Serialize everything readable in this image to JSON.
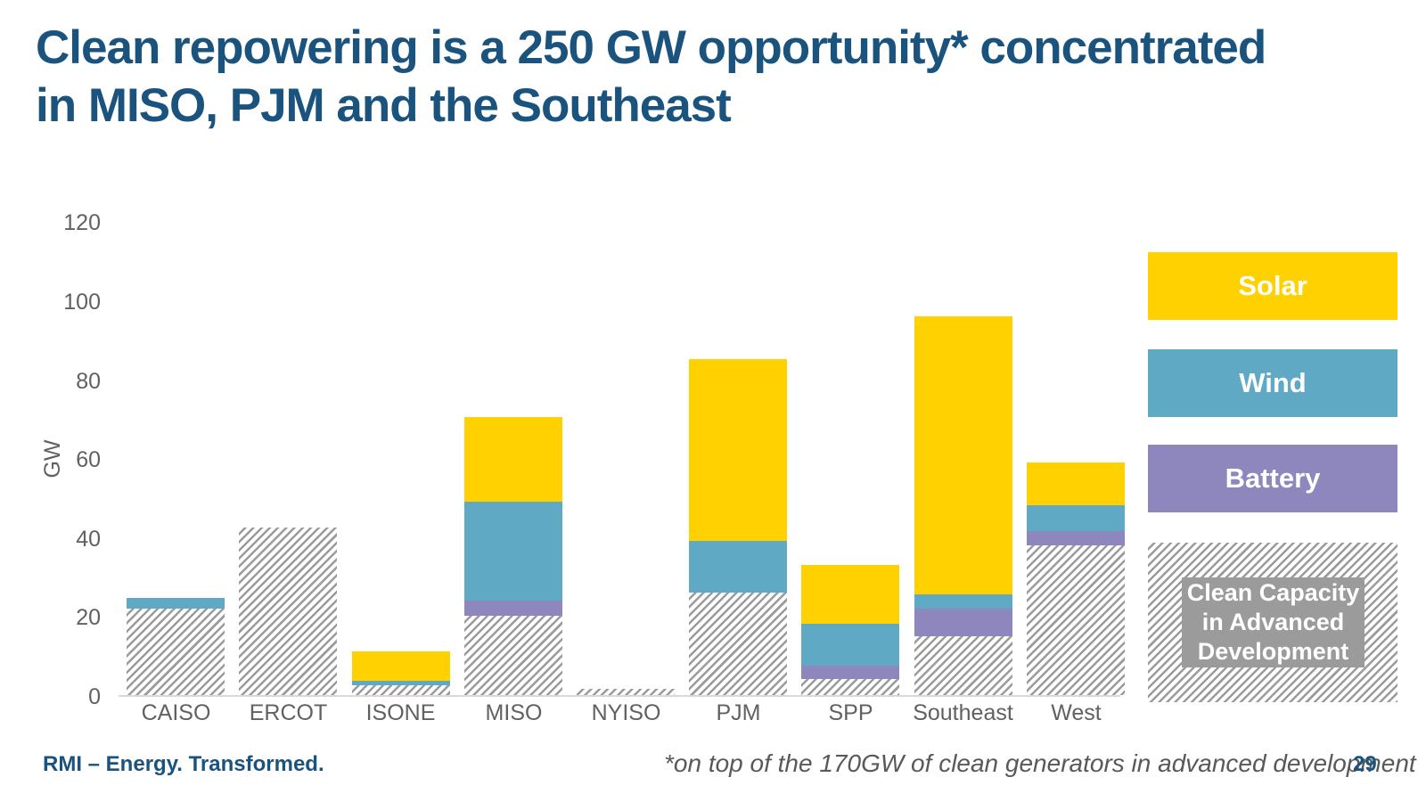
{
  "page": {
    "title": "Clean repowering is a 250 GW opportunity* concentrated\nin MISO, PJM and the Southeast",
    "footer_brand": "RMI – Energy. Transformed.",
    "footnote": "*on top of the 170GW of clean generators in advanced development",
    "page_number": "29"
  },
  "colors": {
    "title_blue": "#1A537D",
    "solar_yellow": "#FFD100",
    "wind_teal": "#5FA9C5",
    "battery_purple": "#8D87BE",
    "hatch_stripe_gray": "#9B9B9B",
    "legend_gray_label_box": "#9B9B9B",
    "axis_text_gray": "#616161",
    "axis_line_gray": "#D9D9D9"
  },
  "chart_data": {
    "type": "bar",
    "stacked": true,
    "title": "",
    "xlabel": "",
    "ylabel": "GW",
    "ylim": [
      0,
      120
    ],
    "yticks": [
      0,
      20,
      40,
      60,
      80,
      100,
      120
    ],
    "grid": false,
    "legend_position": "right",
    "categories": [
      "CAISO",
      "ERCOT",
      "ISONE",
      "MISO",
      "NYISO",
      "PJM",
      "SPP",
      "Southeast",
      "West"
    ],
    "series": [
      {
        "name": "Clean Capacity in Advanced Development",
        "key": "advanced",
        "hatch": true,
        "color": "hatched-gray",
        "values": [
          22,
          42.5,
          2.5,
          20,
          1.5,
          26,
          4,
          15,
          38
        ]
      },
      {
        "name": "Battery",
        "key": "battery",
        "hatch": false,
        "color": "#8D87BE",
        "values": [
          0,
          0,
          0,
          4,
          0,
          0,
          3.5,
          7,
          3.5
        ]
      },
      {
        "name": "Wind",
        "key": "wind",
        "hatch": false,
        "color": "#5FA9C5",
        "values": [
          2.5,
          0,
          1,
          25,
          0,
          13,
          10.5,
          3.5,
          6.5
        ]
      },
      {
        "name": "Solar",
        "key": "solar",
        "hatch": false,
        "color": "#FFD100",
        "values": [
          0,
          0,
          7.5,
          21.5,
          0,
          46,
          15,
          70.5,
          11
        ]
      }
    ],
    "stack_totals": {
      "CAISO": 24.5,
      "ERCOT": 42.5,
      "ISONE": 11,
      "MISO": 70.5,
      "NYISO": 1.5,
      "PJM": 85,
      "SPP": 33,
      "Southeast": 96,
      "West": 59
    }
  },
  "legend": {
    "items": [
      {
        "label": "Solar",
        "key": "solar"
      },
      {
        "label": "Wind",
        "key": "wind"
      },
      {
        "label": "Battery",
        "key": "battery"
      },
      {
        "label": "Clean Capacity\nin Advanced\nDevelopment",
        "key": "advanced"
      }
    ]
  }
}
